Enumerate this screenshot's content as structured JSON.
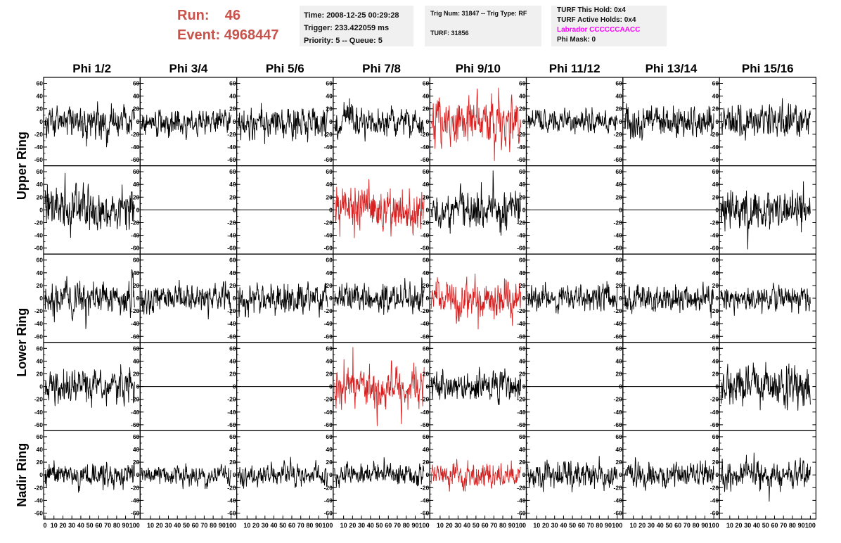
{
  "header": {
    "run_label": "Run:",
    "run_value": "46",
    "event_label": "Event:",
    "event_value": "4968447"
  },
  "info_box_1": {
    "time": "Time: 2008-12-25 00:29:28",
    "trigger": "Trigger: 233.422059 ms",
    "priority": "Priority: 5 -- Queue: 5"
  },
  "info_box_2": {
    "trig": "Trig Num: 31847 -- Trig Type: RF",
    "turf": "TURF: 31856"
  },
  "info_box_3": {
    "this_hold": "TURF This Hold: 0x4",
    "active_holds": "TURF Active Holds: 0x4",
    "labrador": "Labrador CCCCCCAACC",
    "phi_mask": "Phi Mask: 0"
  },
  "colors": {
    "trace": "#000000",
    "highlight_trace": "#d62020",
    "run_text": "#c9524b",
    "labrador_text": "#ff00ff"
  },
  "chart_data": {
    "type": "line",
    "columns": [
      "Phi 1/2",
      "Phi 3/4",
      "Phi 5/6",
      "Phi 7/8",
      "Phi 9/10",
      "Phi 11/12",
      "Phi 13/14",
      "Phi 15/16"
    ],
    "ring_labels": [
      {
        "label": "Upper Ring",
        "rows": [
          0,
          1
        ]
      },
      {
        "label": "Lower Ring",
        "rows": [
          2,
          3
        ]
      },
      {
        "label": "Nadir Ring",
        "rows": [
          4,
          4
        ]
      }
    ],
    "y_ticks": [
      "60",
      "40",
      "20",
      "0",
      "-20",
      "-40",
      "-60"
    ],
    "x_ticks_first": [
      "0",
      "10",
      "20",
      "30",
      "40",
      "50",
      "60",
      "70",
      "80",
      "90",
      "100"
    ],
    "x_ticks_other": [
      "10",
      "20",
      "30",
      "40",
      "50",
      "60",
      "70",
      "80",
      "90",
      "100"
    ],
    "ylim": [
      -65,
      65
    ],
    "xlim": [
      0,
      100
    ],
    "grid": false,
    "panels": [
      [
        {
          "s": 1,
          "a": 11
        },
        {
          "s": 2,
          "a": 9
        },
        {
          "s": 3,
          "a": 13
        },
        {
          "s": 4,
          "a": 10
        },
        {
          "s": 5,
          "a": 16,
          "h": true
        },
        {
          "s": 6,
          "a": 8
        },
        {
          "s": 7,
          "a": 11
        },
        {
          "s": 8,
          "a": 12
        }
      ],
      [
        {
          "s": 9,
          "a": 15
        },
        {
          "flat": true
        },
        {
          "flat": true
        },
        {
          "s": 10,
          "a": 16,
          "h": true
        },
        {
          "s": 11,
          "a": 14
        },
        {
          "flat": true
        },
        {
          "flat": true
        },
        {
          "s": 12,
          "a": 15
        }
      ],
      [
        {
          "s": 13,
          "a": 12
        },
        {
          "s": 14,
          "a": 10
        },
        {
          "s": 15,
          "a": 11
        },
        {
          "s": 16,
          "a": 11
        },
        {
          "s": 17,
          "a": 13,
          "h": true
        },
        {
          "s": 18,
          "a": 10
        },
        {
          "s": 19,
          "a": 10
        },
        {
          "s": 20,
          "a": 9
        }
      ],
      [
        {
          "s": 21,
          "a": 12
        },
        {
          "flat": true
        },
        {
          "flat": true
        },
        {
          "s": 22,
          "a": 15,
          "h": true
        },
        {
          "s": 23,
          "a": 11
        },
        {
          "flat": true
        },
        {
          "flat": true
        },
        {
          "s": 24,
          "a": 13
        }
      ],
      [
        {
          "s": 25,
          "a": 9
        },
        {
          "s": 26,
          "a": 7
        },
        {
          "s": 27,
          "a": 8
        },
        {
          "s": 28,
          "a": 8
        },
        {
          "s": 29,
          "a": 9,
          "h": true
        },
        {
          "s": 30,
          "a": 10
        },
        {
          "s": 31,
          "a": 9
        },
        {
          "s": 32,
          "a": 10
        }
      ]
    ]
  }
}
